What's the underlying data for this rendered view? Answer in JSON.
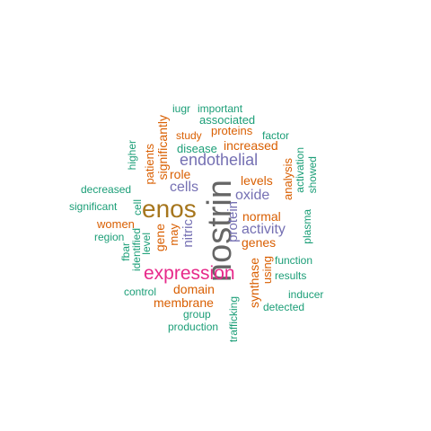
{
  "words": {
    "nostrin": "nostrin",
    "enos": "enos",
    "expression": "expression",
    "endothelial": "endothelial",
    "activity": "activity",
    "oxide": "oxide",
    "cells": "cells",
    "nitric": "nitric",
    "protein": "protein",
    "domain": "domain",
    "membrane": "membrane",
    "increased": "increased",
    "proteins": "proteins",
    "significantly": "significantly",
    "levels": "levels",
    "normal": "normal",
    "genes": "genes",
    "gene": "gene",
    "may": "may",
    "role": "role",
    "patients": "patients",
    "women": "women",
    "study": "study",
    "synthase": "synthase",
    "using": "using",
    "analysis": "analysis",
    "iugr": "iugr",
    "important": "important",
    "associated": "associated",
    "factor": "factor",
    "disease": "disease",
    "higher": "higher",
    "decreased": "decreased",
    "significant": "significant",
    "region": "region",
    "cell": "cell",
    "level": "level",
    "identified": "identified",
    "fbar": "fbar",
    "control": "control",
    "group": "group",
    "production": "production",
    "trafficking": "trafficking",
    "function": "function",
    "results": "results",
    "inducer": "inducer",
    "detected": "detected",
    "plasma": "plasma",
    "activation": "activation",
    "showed": "showed"
  },
  "palette": {
    "green": "#1b9e77",
    "orange": "#d95f02",
    "purple": "#7570b3",
    "magenta": "#e7298a",
    "brown": "#a6761d",
    "gray": "#666666"
  }
}
